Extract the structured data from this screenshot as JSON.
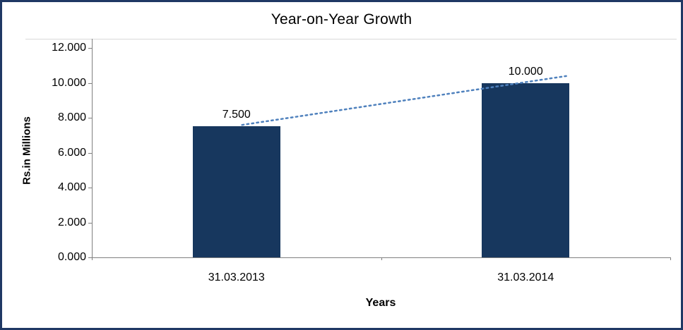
{
  "chart_data": {
    "type": "bar",
    "title": "Year-on-Year Growth",
    "xlabel": "Years",
    "ylabel": "Rs.in Millions",
    "categories": [
      "31.03.2013",
      "31.03.2014"
    ],
    "values": [
      7.5,
      10.0
    ],
    "data_labels": [
      "7.500",
      "10.000"
    ],
    "y_ticks": [
      12,
      10,
      8,
      6,
      4,
      2,
      0
    ],
    "y_tick_labels": [
      "12.000",
      "10.000",
      "8.000",
      "6.000",
      "4.000",
      "2.000",
      "0.000"
    ],
    "ylim": [
      0,
      12
    ],
    "grid": "off",
    "legend": "none",
    "has_trendline": true,
    "colors": {
      "bar": "#17375E",
      "trendline": "#4F81BD",
      "frame_border": "#1F3864",
      "axis_line": "#808080",
      "background": "#FFFFFF"
    }
  }
}
